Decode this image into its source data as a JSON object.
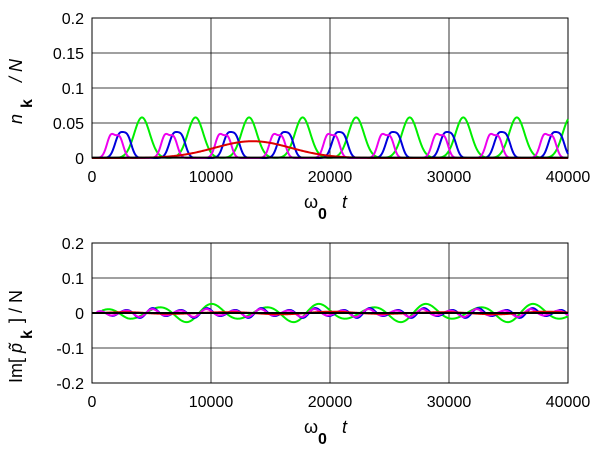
{
  "chart_data": [
    {
      "type": "line",
      "x_tick_labels": [
        "0",
        "10000",
        "20000",
        "30000",
        "40000"
      ],
      "y_tick_labels": [
        "0",
        "0.05",
        "0.1",
        "0.15",
        "0.2"
      ],
      "xlim": [
        0,
        40000
      ],
      "ylim": [
        0,
        0.2
      ],
      "grid": true,
      "xlabel": {
        "symbol": "ω",
        "sub": "0",
        "var": "t"
      },
      "ylabel": {
        "symbol": "n",
        "sub": "k",
        "rest": "/ N"
      },
      "series": [
        {
          "color": "#00ee00",
          "kind": "peaks",
          "period": 4500,
          "offset": 0,
          "amplitude": 0.058,
          "width": 650,
          "first": 4200
        },
        {
          "color": "#0000dd",
          "kind": "peaks",
          "period": 4550,
          "offset": 0,
          "amplitude": 0.032,
          "width": 380,
          "first": 2300,
          "double": 1400
        },
        {
          "color": "#ee00ee",
          "kind": "peaks",
          "period": 4550,
          "offset": 0,
          "amplitude": 0.032,
          "width": 350,
          "first": 1600,
          "double": 1450
        },
        {
          "color": "#dd0000",
          "kind": "bump",
          "center": 13500,
          "amplitude": 0.024,
          "width": 3200,
          "tail": 0.002
        },
        {
          "color": "#000000",
          "kind": "flat",
          "value": 0.0005
        }
      ]
    },
    {
      "type": "line",
      "x_tick_labels": [
        "0",
        "10000",
        "20000",
        "30000",
        "40000"
      ],
      "y_tick_labels": [
        "-0.2",
        "-0.1",
        "0",
        "0.1",
        "0.2"
      ],
      "xlim": [
        0,
        40000
      ],
      "ylim": [
        -0.2,
        0.2
      ],
      "grid": true,
      "xlabel": {
        "symbol": "ω",
        "sub": "0",
        "var": "t"
      },
      "ylabel": {
        "prefix": "Im[",
        "symbol": "p̃",
        "sub": "k",
        "rest": "] / N"
      },
      "series": [
        {
          "color": "#00ee00",
          "kind": "osc",
          "period": 4500,
          "amplitude": 0.028,
          "start": 3000
        },
        {
          "color": "#0000dd",
          "kind": "osc",
          "period": 2280,
          "amplitude": 0.015,
          "start": 1800
        },
        {
          "color": "#ee00ee",
          "kind": "osc",
          "period": 2270,
          "amplitude": 0.012,
          "start": 1400
        },
        {
          "color": "#dd0000",
          "kind": "osc",
          "period": 9000,
          "amplitude": 0.004,
          "start": 4000
        },
        {
          "color": "#000000",
          "kind": "flat",
          "value": 0
        }
      ]
    }
  ]
}
